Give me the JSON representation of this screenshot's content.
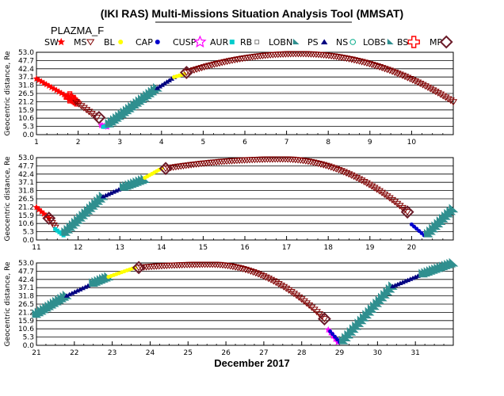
{
  "title": "(IKI RAS) Multi-Missions Situation Analysis Tool (MMSAT)",
  "subtitle": "PLAZMA_F",
  "xlabel": "December 2017",
  "ylabel": "Geocentric distance, Re",
  "legend": [
    {
      "label": "SW",
      "symbol": "star-small",
      "color": "#ff0000"
    },
    {
      "label": "MS",
      "symbol": "tri-down",
      "color": "#800000"
    },
    {
      "label": "BL",
      "symbol": "dot",
      "color": "#ffff00"
    },
    {
      "label": "CAP",
      "symbol": "dot",
      "color": "#0000cc"
    },
    {
      "label": "CUSP",
      "symbol": "star",
      "color": "#ff00ff"
    },
    {
      "label": "AUR",
      "symbol": "square",
      "color": "#00cccc"
    },
    {
      "label": "RB",
      "symbol": "small-sq",
      "color": "#808080"
    },
    {
      "label": "LOBN",
      "symbol": "tri-right",
      "color": "#2f8f8f"
    },
    {
      "label": "PS",
      "symbol": "tri-up",
      "color": "#000080"
    },
    {
      "label": "NS",
      "symbol": "circle",
      "color": "#00aa88"
    },
    {
      "label": "LOBS",
      "symbol": "tri-right",
      "color": "#2f8f8f"
    },
    {
      "label": "BS",
      "symbol": "plus-box",
      "color": "#ff0000"
    },
    {
      "label": "MP",
      "symbol": "diamond",
      "color": "#6b1c2a"
    }
  ],
  "chart_data": [
    {
      "type": "scatter",
      "xlim": [
        1,
        11
      ],
      "ylim": [
        0,
        53
      ],
      "xticks": [
        "1",
        "2",
        "3",
        "4",
        "5",
        "6",
        "7",
        "8",
        "9",
        "10"
      ],
      "yticks": [
        "0.0",
        "5.3",
        "10.6",
        "15.9",
        "21.2",
        "26.5",
        "31.8",
        "37.1",
        "42.4",
        "47.7",
        "53.0"
      ],
      "grid": true,
      "segments": [
        {
          "region": "SW",
          "color": "#ff0000",
          "x": [
            1.0,
            1.9
          ],
          "curve": "line",
          "y": [
            36,
            22
          ]
        },
        {
          "region": "BS",
          "color": "#ff0000",
          "x": [
            1.8,
            1.95
          ],
          "curve": "line",
          "y": [
            24,
            21
          ]
        },
        {
          "region": "MS",
          "color": "#800000",
          "x": [
            1.95,
            2.45
          ],
          "curve": "line",
          "y": [
            21,
            11
          ]
        },
        {
          "region": "CUSP",
          "color": "#ff00ff",
          "x": [
            2.55,
            2.7
          ],
          "curve": "line",
          "y": [
            6,
            5
          ]
        },
        {
          "region": "AUR",
          "color": "#00cccc",
          "x": [
            2.6,
            2.75
          ],
          "curve": "line",
          "y": [
            5,
            6
          ]
        },
        {
          "region": "LOBN",
          "color": "#2f8f8f",
          "x": [
            2.75,
            3.9
          ],
          "curve": "line",
          "y": [
            7,
            30
          ]
        },
        {
          "region": "PS",
          "color": "#000080",
          "x": [
            3.9,
            4.3
          ],
          "curve": "line",
          "y": [
            30,
            37
          ]
        },
        {
          "region": "BL",
          "color": "#ffff00",
          "x": [
            4.3,
            4.55
          ],
          "curve": "line",
          "y": [
            37,
            39
          ]
        },
        {
          "region": "MS",
          "color": "#800000",
          "x": [
            4.6,
            11.0
          ],
          "curve": "arc",
          "peak": [
            7.3,
            52
          ],
          "y": [
            40,
            21
          ]
        }
      ],
      "mp_crossings": [
        [
          2.5,
          11
        ],
        [
          4.6,
          40
        ]
      ],
      "bs_crossings": [
        [
          1.8,
          24
        ]
      ]
    },
    {
      "type": "scatter",
      "xlim": [
        11,
        21
      ],
      "ylim": [
        0,
        53
      ],
      "xticks": [
        "11",
        "12",
        "13",
        "14",
        "15",
        "16",
        "17",
        "18",
        "19",
        "20"
      ],
      "yticks": [
        "0.0",
        "5.3",
        "10.6",
        "15.9",
        "21.2",
        "26.5",
        "31.8",
        "37.1",
        "42.4",
        "47.7",
        "53.0"
      ],
      "grid": true,
      "segments": [
        {
          "region": "SW",
          "color": "#ff0000",
          "x": [
            11.0,
            11.3
          ],
          "curve": "line",
          "y": [
            21,
            14
          ]
        },
        {
          "region": "MS",
          "color": "#800000",
          "x": [
            11.3,
            11.45
          ],
          "curve": "line",
          "y": [
            14,
            8
          ]
        },
        {
          "region": "AUR",
          "color": "#00cccc",
          "x": [
            11.45,
            11.65
          ],
          "curve": "line",
          "y": [
            7,
            3
          ]
        },
        {
          "region": "LOBN",
          "color": "#2f8f8f",
          "x": [
            11.7,
            12.6
          ],
          "curve": "line",
          "y": [
            5,
            28
          ]
        },
        {
          "region": "PS",
          "color": "#000080",
          "x": [
            12.6,
            13.1
          ],
          "curve": "line",
          "y": [
            28,
            34
          ]
        },
        {
          "region": "LOBN",
          "color": "#2f8f8f",
          "x": [
            13.1,
            13.6
          ],
          "curve": "line",
          "y": [
            34,
            39
          ]
        },
        {
          "region": "BL",
          "color": "#ffff00",
          "x": [
            13.6,
            14.0
          ],
          "curve": "line",
          "y": [
            40,
            46
          ]
        },
        {
          "region": "MS",
          "color": "#800000",
          "x": [
            14.1,
            19.9
          ],
          "curve": "arc",
          "peak": [
            16.9,
            52
          ],
          "y": [
            46,
            18
          ]
        },
        {
          "region": "CAP",
          "color": "#0000cc",
          "x": [
            20.0,
            20.3
          ],
          "curve": "line",
          "y": [
            10,
            3
          ]
        },
        {
          "region": "LOBS",
          "color": "#2f8f8f",
          "x": [
            20.4,
            21.0
          ],
          "curve": "line",
          "y": [
            4,
            20
          ]
        }
      ],
      "mp_crossings": [
        [
          11.3,
          14
        ],
        [
          14.1,
          46
        ],
        [
          19.9,
          18
        ]
      ],
      "bs_crossings": []
    },
    {
      "type": "scatter",
      "xlim": [
        21,
        32
      ],
      "ylim": [
        0,
        53
      ],
      "xticks": [
        "21",
        "22",
        "23",
        "24",
        "25",
        "26",
        "27",
        "28",
        "29",
        "30",
        "31"
      ],
      "yticks": [
        "0.0",
        "5.3",
        "10.6",
        "15.9",
        "21.2",
        "26.5",
        "31.8",
        "37.1",
        "42.4",
        "47.7",
        "53.0"
      ],
      "grid": true,
      "segments": [
        {
          "region": "LOBS",
          "color": "#2f8f8f",
          "x": [
            21.0,
            21.8
          ],
          "curve": "line",
          "y": [
            20,
            32
          ]
        },
        {
          "region": "PS",
          "color": "#000080",
          "x": [
            21.8,
            22.5
          ],
          "curve": "line",
          "y": [
            32,
            40
          ]
        },
        {
          "region": "LOBN",
          "color": "#2f8f8f",
          "x": [
            22.5,
            22.9
          ],
          "curve": "line",
          "y": [
            40,
            44
          ]
        },
        {
          "region": "BL",
          "color": "#ffff00",
          "x": [
            22.9,
            23.6
          ],
          "curve": "line",
          "y": [
            44,
            50
          ]
        },
        {
          "region": "MS",
          "color": "#800000",
          "x": [
            23.7,
            28.6
          ],
          "curve": "arc",
          "peak": [
            25.6,
            52
          ],
          "y": [
            50,
            17
          ]
        },
        {
          "region": "CUSP",
          "color": "#ff00ff",
          "x": [
            28.7,
            28.95
          ],
          "curve": "line",
          "y": [
            10,
            2
          ]
        },
        {
          "region": "CAP",
          "color": "#0000cc",
          "x": [
            28.75,
            29.0
          ],
          "curve": "line",
          "y": [
            9,
            2
          ]
        },
        {
          "region": "LOBS",
          "color": "#2f8f8f",
          "x": [
            29.1,
            30.4
          ],
          "curve": "line",
          "y": [
            3,
            38
          ]
        },
        {
          "region": "PS",
          "color": "#000080",
          "x": [
            30.4,
            31.2
          ],
          "curve": "line",
          "y": [
            38,
            46
          ]
        },
        {
          "region": "LOBN",
          "color": "#2f8f8f",
          "x": [
            31.2,
            32.0
          ],
          "curve": "line",
          "y": [
            46,
            53
          ]
        }
      ],
      "mp_crossings": [
        [
          23.7,
          50
        ],
        [
          28.6,
          17
        ]
      ],
      "bs_crossings": []
    }
  ]
}
